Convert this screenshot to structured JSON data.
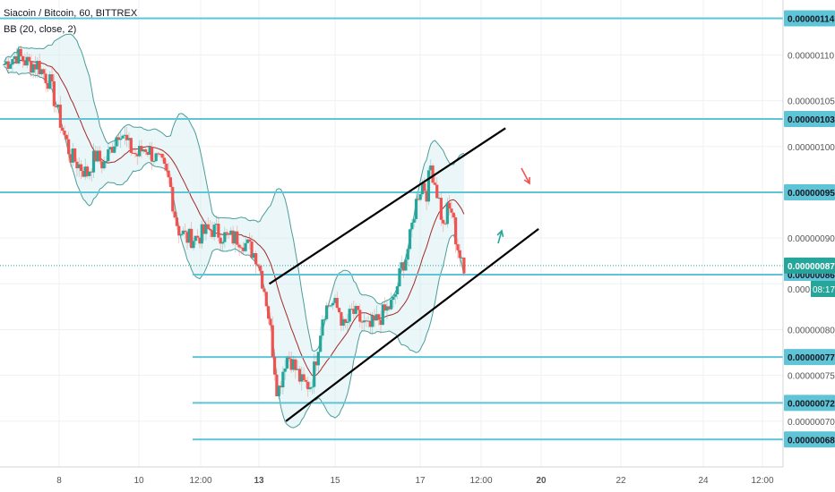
{
  "header": {
    "symbol": "Siacoin / Bitcoin, 60, BITTREX",
    "indicator": "BB (20, close, 2)"
  },
  "colors": {
    "up": "#26a69a",
    "down": "#ef5350",
    "level_line": "#5fc4d6",
    "channel": "#000000",
    "bb_band": "#4a9d9a",
    "bb_basis": "#a52a2a",
    "bb_fill": "#d8eef0",
    "grid": "#eef1f4",
    "last_price": "#26a69a",
    "arrow_down": "#ef5350",
    "arrow_up": "#26a69a"
  },
  "chart_data": {
    "type": "candlestick",
    "title": "Siacoin / Bitcoin, 60, BITTREX",
    "indicator": "BB (20, close, 2)",
    "y_axis": {
      "min": 6.5e-07,
      "max": 1.16e-06,
      "tick_labels": [
        "0.00000070",
        "0.00000075",
        "0.00000080",
        "0.00000085",
        "0.00000090",
        "0.00000100",
        "0.00000105",
        "0.00000110"
      ]
    },
    "x_axis": {
      "tick_labels": [
        "8",
        "10",
        "12:00",
        "13",
        "15",
        "17",
        "12:00",
        "20",
        "22",
        "24",
        "12:00"
      ]
    },
    "level_lines": [
      {
        "label": "0.00000114",
        "value": 1.14e-06
      },
      {
        "label": "0.00000103",
        "value": 1.03e-06
      },
      {
        "label": "0.00000095",
        "value": 9.5e-07
      },
      {
        "label": "0.00000086",
        "value": 8.6e-07
      },
      {
        "label": "0.00000077",
        "value": 7.7e-07
      },
      {
        "label": "0.00000072",
        "value": 7.2e-07
      },
      {
        "label": "0.00000068",
        "value": 6.8e-07
      }
    ],
    "last_price": {
      "label": "0.00000087",
      "value": 8.7e-07
    },
    "countdown": {
      "price_label": "0.000",
      "time": "08:17"
    },
    "price_path": [
      {
        "t": 0,
        "p": 1.09e-06
      },
      {
        "t": 3,
        "p": 1.1e-06
      },
      {
        "t": 6,
        "p": 1.09e-06
      },
      {
        "t": 8,
        "p": 1.09e-06
      },
      {
        "t": 11,
        "p": 1.07e-06
      },
      {
        "t": 14,
        "p": 1.02e-06
      },
      {
        "t": 16,
        "p": 9.9e-07
      },
      {
        "t": 18,
        "p": 9.8e-07
      },
      {
        "t": 20,
        "p": 9.7e-07
      },
      {
        "t": 22,
        "p": 9.9e-07
      },
      {
        "t": 24,
        "p": 9.8e-07
      },
      {
        "t": 26,
        "p": 1e-06
      },
      {
        "t": 28,
        "p": 1.02e-06
      },
      {
        "t": 30,
        "p": 1e-06
      },
      {
        "t": 32,
        "p": 9.9e-07
      },
      {
        "t": 34,
        "p": 1e-06
      },
      {
        "t": 36,
        "p": 9.9e-07
      },
      {
        "t": 38,
        "p": 9.8e-07
      },
      {
        "t": 40,
        "p": 9.6e-07
      },
      {
        "t": 41,
        "p": 9.3e-07
      },
      {
        "t": 42,
        "p": 9.1e-07
      },
      {
        "t": 44,
        "p": 9e-07
      },
      {
        "t": 46,
        "p": 9e-07
      },
      {
        "t": 50,
        "p": 9.1e-07
      },
      {
        "t": 54,
        "p": 9e-07
      },
      {
        "t": 57,
        "p": 9e-07
      },
      {
        "t": 59,
        "p": 8.9e-07
      },
      {
        "t": 61,
        "p": 8.8e-07
      },
      {
        "t": 62,
        "p": 8.6e-07
      },
      {
        "t": 63,
        "p": 8.4e-07
      },
      {
        "t": 64,
        "p": 8.1e-07
      },
      {
        "t": 65,
        "p": 7.7e-07
      },
      {
        "t": 66,
        "p": 7.3e-07
      },
      {
        "t": 67,
        "p": 7.5e-07
      },
      {
        "t": 68,
        "p": 7.7e-07
      },
      {
        "t": 69,
        "p": 7.7e-07
      },
      {
        "t": 70,
        "p": 7.6e-07
      },
      {
        "t": 72,
        "p": 7.4e-07
      },
      {
        "t": 74,
        "p": 7.4e-07
      },
      {
        "t": 75,
        "p": 7.6e-07
      },
      {
        "t": 76,
        "p": 7.9e-07
      },
      {
        "t": 77,
        "p": 8.2e-07
      },
      {
        "t": 79,
        "p": 8.3e-07
      },
      {
        "t": 81,
        "p": 8.2e-07
      },
      {
        "t": 82,
        "p": 8e-07
      },
      {
        "t": 84,
        "p": 8.2e-07
      },
      {
        "t": 86,
        "p": 8.1e-07
      },
      {
        "t": 88,
        "p": 8e-07
      },
      {
        "t": 90,
        "p": 8.1e-07
      },
      {
        "t": 92,
        "p": 8.2e-07
      },
      {
        "t": 94,
        "p": 8.3e-07
      },
      {
        "t": 95,
        "p": 8.5e-07
      },
      {
        "t": 96,
        "p": 8.7e-07
      },
      {
        "t": 97,
        "p": 8.8e-07
      },
      {
        "t": 98,
        "p": 9e-07
      },
      {
        "t": 99,
        "p": 9.3e-07
      },
      {
        "t": 100,
        "p": 9.5e-07
      },
      {
        "t": 101,
        "p": 9.6e-07
      },
      {
        "t": 102,
        "p": 9.5e-07
      },
      {
        "t": 103,
        "p": 9.8e-07
      },
      {
        "t": 104,
        "p": 9.6e-07
      },
      {
        "t": 105,
        "p": 9.4e-07
      },
      {
        "t": 106,
        "p": 9.1e-07
      },
      {
        "t": 107,
        "p": 9.3e-07
      },
      {
        "t": 108,
        "p": 9.3e-07
      },
      {
        "t": 109,
        "p": 9e-07
      },
      {
        "t": 110,
        "p": 8.8e-07
      },
      {
        "t": 111,
        "p": 8.6e-07
      }
    ],
    "channel_lines": [
      {
        "name": "upper",
        "points": [
          {
            "t": 64,
            "p": 8.5e-07
          },
          {
            "t": 121,
            "p": 1.02e-06
          }
        ]
      },
      {
        "name": "lower",
        "points": [
          {
            "t": 68,
            "p": 7e-07
          },
          {
            "t": 129,
            "p": 9.1e-07
          }
        ]
      }
    ],
    "annotations": [
      {
        "type": "arrow",
        "direction": "down",
        "color": "red"
      },
      {
        "type": "arrow",
        "direction": "up",
        "color": "green"
      }
    ]
  }
}
